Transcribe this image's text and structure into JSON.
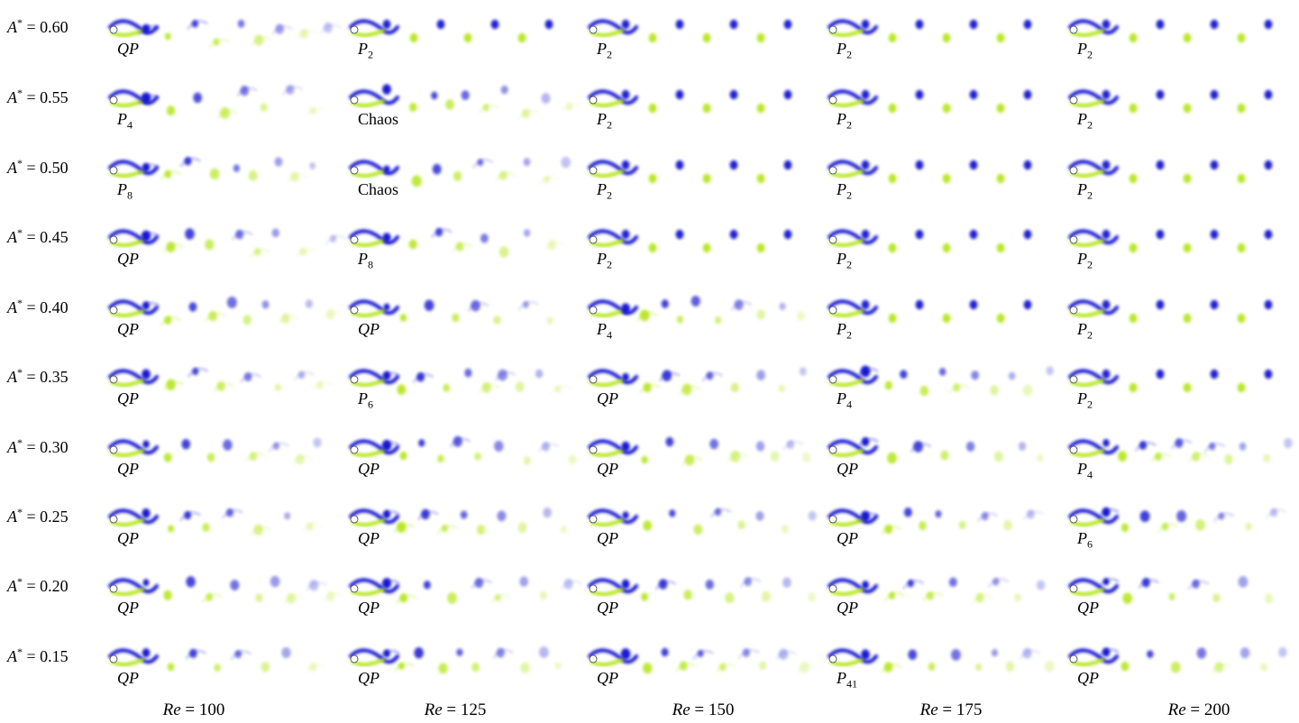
{
  "colors": {
    "positive_vortex": "#1414d2",
    "negative_vortex": "#b5e61d",
    "cylinder": "#ffffff"
  },
  "row_labels": [
    {
      "symbol": "A",
      "superscript": "*",
      "relation": "= 0.60"
    },
    {
      "symbol": "A",
      "superscript": "*",
      "relation": "= 0.55"
    },
    {
      "symbol": "A",
      "superscript": "*",
      "relation": "= 0.50"
    },
    {
      "symbol": "A",
      "superscript": "*",
      "relation": "= 0.45"
    },
    {
      "symbol": "A",
      "superscript": "*",
      "relation": "= 0.40"
    },
    {
      "symbol": "A",
      "superscript": "*",
      "relation": "= 0.35"
    },
    {
      "symbol": "A",
      "superscript": "*",
      "relation": "= 0.30"
    },
    {
      "symbol": "A",
      "superscript": "*",
      "relation": "= 0.25"
    },
    {
      "symbol": "A",
      "superscript": "*",
      "relation": "= 0.20"
    },
    {
      "symbol": "A",
      "superscript": "*",
      "relation": "= 0.15"
    }
  ],
  "column_labels": [
    {
      "symbol": "Re",
      "relation": "= 100"
    },
    {
      "symbol": "Re",
      "relation": "= 125"
    },
    {
      "symbol": "Re",
      "relation": "= 150"
    },
    {
      "symbol": "Re",
      "relation": "= 175"
    },
    {
      "symbol": "Re",
      "relation": "= 200"
    }
  ],
  "regimes": [
    [
      {
        "base": "QP",
        "sub": ""
      },
      {
        "base": "P",
        "sub": "2"
      },
      {
        "base": "P",
        "sub": "2"
      },
      {
        "base": "P",
        "sub": "2"
      },
      {
        "base": "P",
        "sub": "2"
      }
    ],
    [
      {
        "base": "P",
        "sub": "4"
      },
      {
        "base": "Chaos",
        "sub": ""
      },
      {
        "base": "P",
        "sub": "2"
      },
      {
        "base": "P",
        "sub": "2"
      },
      {
        "base": "P",
        "sub": "2"
      }
    ],
    [
      {
        "base": "P",
        "sub": "8"
      },
      {
        "base": "Chaos",
        "sub": ""
      },
      {
        "base": "P",
        "sub": "2"
      },
      {
        "base": "P",
        "sub": "2"
      },
      {
        "base": "P",
        "sub": "2"
      }
    ],
    [
      {
        "base": "QP",
        "sub": ""
      },
      {
        "base": "P",
        "sub": "8"
      },
      {
        "base": "P",
        "sub": "2"
      },
      {
        "base": "P",
        "sub": "2"
      },
      {
        "base": "P",
        "sub": "2"
      }
    ],
    [
      {
        "base": "QP",
        "sub": ""
      },
      {
        "base": "QP",
        "sub": ""
      },
      {
        "base": "P",
        "sub": "4"
      },
      {
        "base": "P",
        "sub": "2"
      },
      {
        "base": "P",
        "sub": "2"
      }
    ],
    [
      {
        "base": "QP",
        "sub": ""
      },
      {
        "base": "P",
        "sub": "6"
      },
      {
        "base": "QP",
        "sub": ""
      },
      {
        "base": "P",
        "sub": "4"
      },
      {
        "base": "P",
        "sub": "2"
      }
    ],
    [
      {
        "base": "QP",
        "sub": ""
      },
      {
        "base": "QP",
        "sub": ""
      },
      {
        "base": "QP",
        "sub": ""
      },
      {
        "base": "QP",
        "sub": ""
      },
      {
        "base": "P",
        "sub": "4"
      }
    ],
    [
      {
        "base": "QP",
        "sub": ""
      },
      {
        "base": "QP",
        "sub": ""
      },
      {
        "base": "QP",
        "sub": ""
      },
      {
        "base": "QP",
        "sub": ""
      },
      {
        "base": "P",
        "sub": "6"
      }
    ],
    [
      {
        "base": "QP",
        "sub": ""
      },
      {
        "base": "QP",
        "sub": ""
      },
      {
        "base": "QP",
        "sub": ""
      },
      {
        "base": "QP",
        "sub": ""
      },
      {
        "base": "QP",
        "sub": ""
      }
    ],
    [
      {
        "base": "QP",
        "sub": ""
      },
      {
        "base": "QP",
        "sub": ""
      },
      {
        "base": "QP",
        "sub": ""
      },
      {
        "base": "P",
        "sub": "41"
      },
      {
        "base": "QP",
        "sub": ""
      }
    ]
  ]
}
